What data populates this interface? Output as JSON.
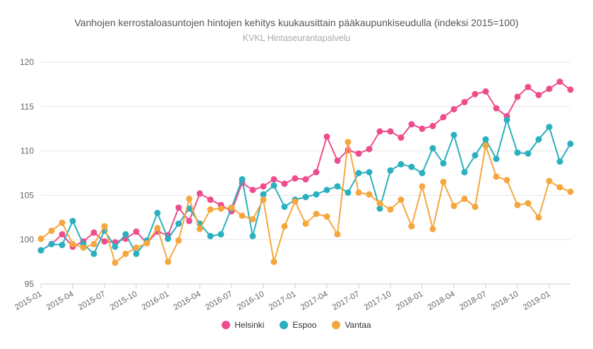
{
  "chart_data": {
    "type": "line",
    "title": "Vanhojen kerrostaloasuntojen hintojen kehitys kuukausittain pääkaupunkiseudulla (indeksi 2015=100)",
    "subtitle": "KVKL Hintaseurantapalvelu",
    "xlabel": "",
    "ylabel": "",
    "ylim": [
      95,
      120
    ],
    "yticks": [
      95,
      100,
      105,
      110,
      115,
      120
    ],
    "grid": true,
    "legend_position": "bottom",
    "x": [
      "2015-01",
      "2015-02",
      "2015-03",
      "2015-04",
      "2015-05",
      "2015-06",
      "2015-07",
      "2015-08",
      "2015-09",
      "2015-10",
      "2015-11",
      "2015-12",
      "2016-01",
      "2016-02",
      "2016-03",
      "2016-04",
      "2016-05",
      "2016-06",
      "2016-07",
      "2016-08",
      "2016-09",
      "2016-10",
      "2016-11",
      "2016-12",
      "2017-01",
      "2017-02",
      "2017-03",
      "2017-04",
      "2017-05",
      "2017-06",
      "2017-07",
      "2017-08",
      "2017-09",
      "2017-10",
      "2017-11",
      "2017-12",
      "2018-01",
      "2018-02",
      "2018-03",
      "2018-04",
      "2018-05",
      "2018-06",
      "2018-07",
      "2018-08",
      "2018-09",
      "2018-10",
      "2018-11",
      "2018-12",
      "2019-01",
      "2019-02",
      "2019-03"
    ],
    "xtick_labels": [
      "2015-01",
      "2015-04",
      "2015-07",
      "2015-10",
      "2016-01",
      "2016-04",
      "2016-07",
      "2016-10",
      "2017-01",
      "2017-04",
      "2017-07",
      "2017-10",
      "2018-01",
      "2018-04",
      "2018-07",
      "2018-10",
      "2019-01"
    ],
    "series": [
      {
        "name": "Helsinki",
        "color": "#ee4d8c",
        "values": [
          98.8,
          99.5,
          100.6,
          99.2,
          99.8,
          100.8,
          99.8,
          99.7,
          100.1,
          100.9,
          99.6,
          100.9,
          100.5,
          103.6,
          102.1,
          105.2,
          104.5,
          103.9,
          103.2,
          106.4,
          105.6,
          106.0,
          106.8,
          106.3,
          106.9,
          106.8,
          107.6,
          111.6,
          108.9,
          110.1,
          109.7,
          110.2,
          112.2,
          112.2,
          111.5,
          113.0,
          112.5,
          112.8,
          113.8,
          114.7,
          115.5,
          116.4,
          116.7,
          114.8,
          113.9,
          116.1,
          117.2,
          116.3,
          117.0,
          117.8,
          116.9
        ]
      },
      {
        "name": "Espoo",
        "color": "#2ab0bf",
        "values": [
          98.8,
          99.5,
          99.4,
          102.1,
          99.5,
          98.4,
          101.0,
          99.2,
          100.6,
          98.4,
          99.9,
          103.0,
          100.1,
          101.8,
          103.5,
          101.8,
          100.4,
          100.6,
          103.6,
          106.8,
          100.4,
          105.1,
          106.1,
          103.7,
          104.5,
          104.8,
          105.1,
          105.6,
          106.0,
          105.3,
          107.5,
          107.6,
          103.5,
          107.8,
          108.5,
          108.2,
          107.5,
          110.3,
          108.6,
          111.8,
          107.6,
          109.5,
          111.3,
          109.1,
          113.5,
          109.8,
          109.7,
          111.3,
          112.7,
          108.8,
          110.8
        ]
      },
      {
        "name": "Vantaa",
        "color": "#f5a73e",
        "values": [
          100.1,
          101.0,
          101.9,
          99.5,
          99.1,
          99.5,
          101.5,
          97.4,
          98.4,
          99.1,
          99.6,
          101.3,
          97.5,
          99.9,
          104.6,
          101.2,
          103.4,
          103.5,
          103.6,
          102.7,
          102.3,
          104.5,
          97.5,
          101.5,
          104.3,
          101.8,
          102.9,
          102.6,
          100.6,
          111.0,
          105.3,
          105.1,
          104.1,
          103.4,
          104.5,
          101.5,
          106.0,
          101.2,
          106.5,
          103.8,
          104.6,
          103.7,
          110.6,
          107.1,
          106.7,
          103.9,
          104.1,
          102.5,
          106.6,
          105.9,
          105.4
        ]
      }
    ]
  }
}
